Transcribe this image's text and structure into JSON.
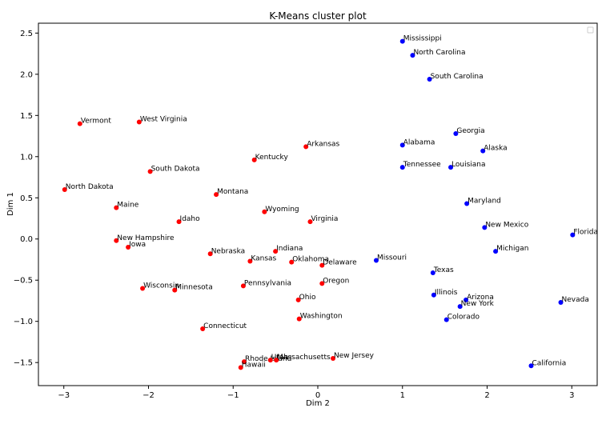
{
  "chart_data": {
    "type": "scatter",
    "title": "K-Means cluster plot",
    "xlabel": "Dim 2",
    "ylabel": "Dim 1",
    "xlim": [
      -3.3,
      3.3
    ],
    "ylim": [
      -1.78,
      2.62
    ],
    "xticks": [
      -3,
      -2,
      -1,
      0,
      1,
      2,
      3
    ],
    "xtick_labels": [
      "−3",
      "−2",
      "−1",
      "0",
      "1",
      "2",
      "3"
    ],
    "yticks": [
      2.5,
      2.0,
      1.5,
      1.0,
      0.5,
      0.0,
      -0.5,
      -1.0,
      -1.5
    ],
    "ytick_labels": [
      "2.5",
      "2.0",
      "1.5",
      "1.0",
      "0.5",
      "0.0",
      "−0.5",
      "−1.0",
      "−1.5"
    ],
    "grid": false,
    "legend": "top-right (empty)",
    "cluster_colors": [
      "#ff0000",
      "#0000ff"
    ],
    "points": [
      {
        "label": "Mississippi",
        "x": 1.0,
        "y": 2.4,
        "cluster": 1
      },
      {
        "label": "North Carolina",
        "x": 1.12,
        "y": 2.23,
        "cluster": 1
      },
      {
        "label": "South Carolina",
        "x": 1.32,
        "y": 1.94,
        "cluster": 1
      },
      {
        "label": "Georgia",
        "x": 1.63,
        "y": 1.28,
        "cluster": 1
      },
      {
        "label": "Alabama",
        "x": 1.0,
        "y": 1.14,
        "cluster": 1
      },
      {
        "label": "Alaska",
        "x": 1.95,
        "y": 1.07,
        "cluster": 1
      },
      {
        "label": "Tennessee",
        "x": 1.0,
        "y": 0.87,
        "cluster": 1
      },
      {
        "label": "Louisiana",
        "x": 1.57,
        "y": 0.87,
        "cluster": 1
      },
      {
        "label": "Maryland",
        "x": 1.76,
        "y": 0.43,
        "cluster": 1
      },
      {
        "label": "New Mexico",
        "x": 1.97,
        "y": 0.14,
        "cluster": 1
      },
      {
        "label": "Florida",
        "x": 3.01,
        "y": 0.05,
        "cluster": 1
      },
      {
        "label": "Michigan",
        "x": 2.1,
        "y": -0.15,
        "cluster": 1
      },
      {
        "label": "Missouri",
        "x": 0.69,
        "y": -0.26,
        "cluster": 1
      },
      {
        "label": "Texas",
        "x": 1.36,
        "y": -0.41,
        "cluster": 1
      },
      {
        "label": "Illinois",
        "x": 1.37,
        "y": -0.68,
        "cluster": 1
      },
      {
        "label": "Arizona",
        "x": 1.75,
        "y": -0.74,
        "cluster": 1
      },
      {
        "label": "New York",
        "x": 1.68,
        "y": -0.82,
        "cluster": 1
      },
      {
        "label": "Nevada",
        "x": 2.87,
        "y": -0.77,
        "cluster": 1
      },
      {
        "label": "Colorado",
        "x": 1.52,
        "y": -0.98,
        "cluster": 1
      },
      {
        "label": "California",
        "x": 2.52,
        "y": -1.54,
        "cluster": 1
      },
      {
        "label": "Vermont",
        "x": -2.81,
        "y": 1.4,
        "cluster": 0
      },
      {
        "label": "West Virginia",
        "x": -2.11,
        "y": 1.42,
        "cluster": 0
      },
      {
        "label": "Arkansas",
        "x": -0.14,
        "y": 1.12,
        "cluster": 0
      },
      {
        "label": "Kentucky",
        "x": -0.75,
        "y": 0.96,
        "cluster": 0
      },
      {
        "label": "South Dakota",
        "x": -1.98,
        "y": 0.82,
        "cluster": 0
      },
      {
        "label": "North Dakota",
        "x": -2.99,
        "y": 0.6,
        "cluster": 0
      },
      {
        "label": "Montana",
        "x": -1.2,
        "y": 0.54,
        "cluster": 0
      },
      {
        "label": "Maine",
        "x": -2.38,
        "y": 0.38,
        "cluster": 0
      },
      {
        "label": "Wyoming",
        "x": -0.63,
        "y": 0.33,
        "cluster": 0
      },
      {
        "label": "Idaho",
        "x": -1.64,
        "y": 0.21,
        "cluster": 0
      },
      {
        "label": "Virginia",
        "x": -0.09,
        "y": 0.21,
        "cluster": 0
      },
      {
        "label": "New Hampshire",
        "x": -2.38,
        "y": -0.02,
        "cluster": 0
      },
      {
        "label": "Iowa",
        "x": -2.24,
        "y": -0.1,
        "cluster": 0
      },
      {
        "label": "Indiana",
        "x": -0.5,
        "y": -0.15,
        "cluster": 0
      },
      {
        "label": "Nebraska",
        "x": -1.27,
        "y": -0.18,
        "cluster": 0
      },
      {
        "label": "Kansas",
        "x": -0.8,
        "y": -0.27,
        "cluster": 0
      },
      {
        "label": "Oklahoma",
        "x": -0.31,
        "y": -0.28,
        "cluster": 0
      },
      {
        "label": "Delaware",
        "x": 0.05,
        "y": -0.32,
        "cluster": 0
      },
      {
        "label": "Oregon",
        "x": 0.05,
        "y": -0.54,
        "cluster": 0
      },
      {
        "label": "Pennsylvania",
        "x": -0.88,
        "y": -0.57,
        "cluster": 0
      },
      {
        "label": "Wisconsin",
        "x": -2.07,
        "y": -0.6,
        "cluster": 0
      },
      {
        "label": "Minnesota",
        "x": -1.69,
        "y": -0.62,
        "cluster": 0
      },
      {
        "label": "Ohio",
        "x": -0.23,
        "y": -0.74,
        "cluster": 0
      },
      {
        "label": "Washington",
        "x": -0.22,
        "y": -0.97,
        "cluster": 0
      },
      {
        "label": "Connecticut",
        "x": -1.36,
        "y": -1.09,
        "cluster": 0
      },
      {
        "label": "New Jersey",
        "x": 0.18,
        "y": -1.45,
        "cluster": 0
      },
      {
        "label": "Rhode Island",
        "x": -0.87,
        "y": -1.49,
        "cluster": 0
      },
      {
        "label": "Utah",
        "x": -0.56,
        "y": -1.47,
        "cluster": 0
      },
      {
        "label": "Massachusetts",
        "x": -0.49,
        "y": -1.47,
        "cluster": 0
      },
      {
        "label": "Hawaii",
        "x": -0.91,
        "y": -1.56,
        "cluster": 0
      }
    ]
  }
}
